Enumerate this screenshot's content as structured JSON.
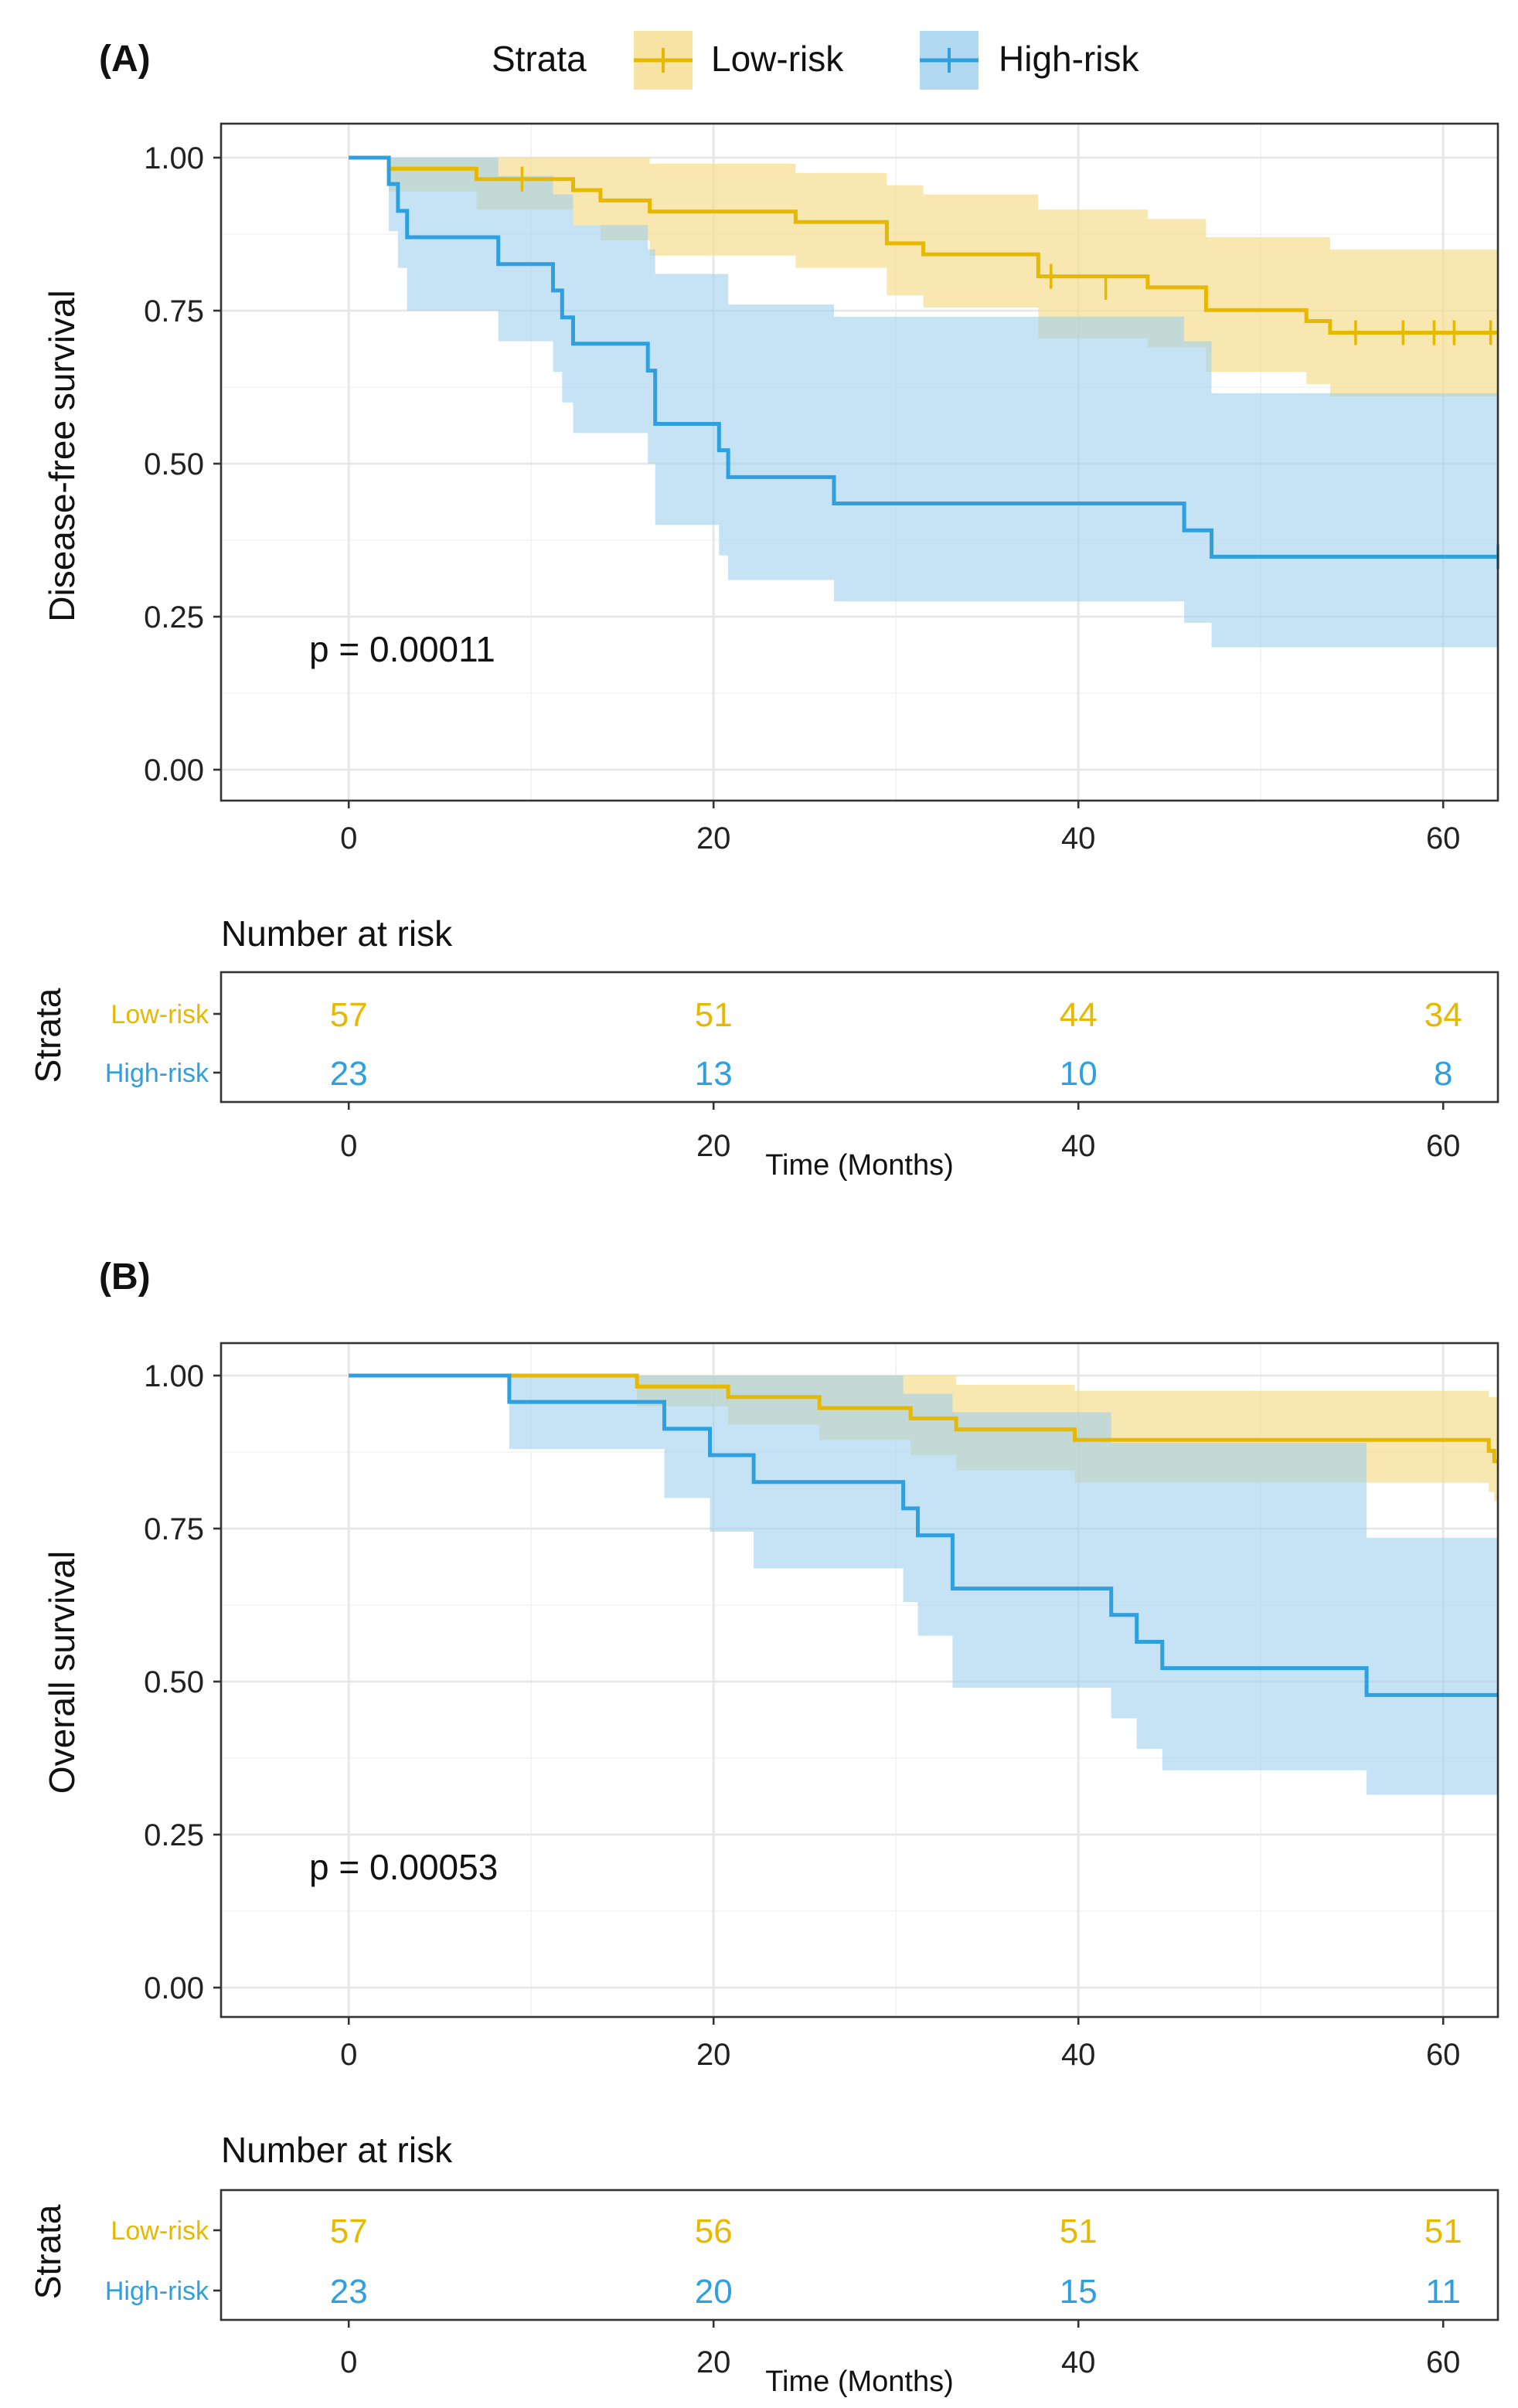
{
  "legend": {
    "title": "Strata",
    "items": [
      {
        "label": "Low-risk",
        "color": "#E7B800"
      },
      {
        "label": "High-risk",
        "color": "#2E9FDF"
      }
    ]
  },
  "colors": {
    "low": "#E7B800",
    "high": "#2E9FDF",
    "low_fill": "#f5dd8e",
    "high_fill": "#9fd0ef"
  },
  "chart_data": [
    {
      "type": "line",
      "panel": "(A)",
      "ylabel": "Disease-free survival",
      "xlabel": "Time (Months)",
      "xlim": [
        -7,
        63
      ],
      "ylim": [
        0,
        1
      ],
      "xticks": [
        0,
        20,
        40,
        60
      ],
      "yticks": [
        "0.00",
        "0.25",
        "0.50",
        "0.75",
        "1.00"
      ],
      "p_value": "p = 0.00011",
      "series": [
        {
          "name": "Low-risk",
          "steps": [
            [
              0,
              1
            ],
            [
              2.2,
              0.982
            ],
            [
              7,
              0.965
            ],
            [
              12.3,
              0.947
            ],
            [
              13.8,
              0.93
            ],
            [
              16.5,
              0.912
            ],
            [
              24.5,
              0.895
            ],
            [
              29.5,
              0.86
            ],
            [
              31.5,
              0.842
            ],
            [
              37.8,
              0.806
            ],
            [
              43.8,
              0.788
            ],
            [
              47,
              0.751
            ],
            [
              52.5,
              0.733
            ],
            [
              53.8,
              0.714
            ],
            [
              63,
              0.714
            ]
          ],
          "lower": [
            [
              0,
              1
            ],
            [
              2.2,
              0.945
            ],
            [
              7,
              0.915
            ],
            [
              12.3,
              0.89
            ],
            [
              13.8,
              0.865
            ],
            [
              16.5,
              0.84
            ],
            [
              24.5,
              0.82
            ],
            [
              29.5,
              0.775
            ],
            [
              31.5,
              0.755
            ],
            [
              37.8,
              0.705
            ],
            [
              43.8,
              0.69
            ],
            [
              47,
              0.65
            ],
            [
              52.5,
              0.63
            ],
            [
              53.8,
              0.61
            ],
            [
              63,
              0.61
            ]
          ],
          "upper": [
            [
              0,
              1
            ],
            [
              2.2,
              1
            ],
            [
              9,
              1
            ],
            [
              12.3,
              1
            ],
            [
              16.5,
              0.99
            ],
            [
              24.5,
              0.975
            ],
            [
              29.5,
              0.955
            ],
            [
              31.5,
              0.94
            ],
            [
              37.8,
              0.915
            ],
            [
              43.8,
              0.9
            ],
            [
              47,
              0.87
            ],
            [
              53.8,
              0.85
            ],
            [
              63,
              0.85
            ]
          ],
          "censors": [
            [
              9.5,
              0.965
            ],
            [
              38.5,
              0.806
            ],
            [
              41.5,
              0.788
            ],
            [
              55.2,
              0.714
            ],
            [
              57.8,
              0.714
            ],
            [
              59.5,
              0.714
            ],
            [
              60.6,
              0.714
            ],
            [
              62.6,
              0.714
            ]
          ]
        },
        {
          "name": "High-risk",
          "steps": [
            [
              0,
              1
            ],
            [
              2.2,
              0.957
            ],
            [
              2.7,
              0.913
            ],
            [
              3.2,
              0.87
            ],
            [
              8.2,
              0.826
            ],
            [
              11.2,
              0.783
            ],
            [
              11.7,
              0.739
            ],
            [
              12.3,
              0.696
            ],
            [
              16.4,
              0.652
            ],
            [
              16.8,
              0.565
            ],
            [
              20.3,
              0.522
            ],
            [
              20.8,
              0.478
            ],
            [
              26.6,
              0.435
            ],
            [
              45.8,
              0.391
            ],
            [
              47.3,
              0.348
            ],
            [
              63,
              0.348
            ]
          ],
          "lower": [
            [
              0,
              1
            ],
            [
              2.2,
              0.88
            ],
            [
              2.7,
              0.82
            ],
            [
              3.2,
              0.75
            ],
            [
              8.2,
              0.7
            ],
            [
              11.2,
              0.65
            ],
            [
              11.7,
              0.6
            ],
            [
              12.3,
              0.55
            ],
            [
              16.4,
              0.5
            ],
            [
              16.8,
              0.4
            ],
            [
              20.3,
              0.35
            ],
            [
              20.8,
              0.31
            ],
            [
              26.6,
              0.275
            ],
            [
              45.8,
              0.24
            ],
            [
              47.3,
              0.2
            ],
            [
              63,
              0.2
            ]
          ],
          "upper": [
            [
              0,
              1
            ],
            [
              8.2,
              0.97
            ],
            [
              11.2,
              0.94
            ],
            [
              12.3,
              0.89
            ],
            [
              16.4,
              0.85
            ],
            [
              16.8,
              0.81
            ],
            [
              20.8,
              0.76
            ],
            [
              26.6,
              0.74
            ],
            [
              45.8,
              0.7
            ],
            [
              47.3,
              0.615
            ],
            [
              63,
              0.615
            ]
          ],
          "censors": [
            [
              63,
              0.348
            ]
          ]
        }
      ],
      "risk_table": {
        "title": "Number at risk",
        "ylabel": "Strata",
        "xlabel": "Time (Months)",
        "times": [
          "0",
          "20",
          "40",
          "60"
        ],
        "rows": [
          {
            "label": "Low-risk",
            "values": [
              "57",
              "51",
              "44",
              "34"
            ]
          },
          {
            "label": "High-risk",
            "values": [
              "23",
              "13",
              "10",
              "8"
            ]
          }
        ]
      }
    },
    {
      "type": "line",
      "panel": "(B)",
      "ylabel": "Overall survival",
      "xlabel": "Time (Months)",
      "xlim": [
        -7,
        63
      ],
      "ylim": [
        0,
        1
      ],
      "xticks": [
        0,
        20,
        40,
        60
      ],
      "yticks": [
        "0.00",
        "0.25",
        "0.50",
        "0.75",
        "1.00"
      ],
      "p_value": "p = 0.00053",
      "series": [
        {
          "name": "Low-risk",
          "steps": [
            [
              0,
              1
            ],
            [
              15.8,
              0.982
            ],
            [
              20.8,
              0.965
            ],
            [
              25.8,
              0.947
            ],
            [
              30.8,
              0.93
            ],
            [
              33.3,
              0.912
            ],
            [
              39.8,
              0.895
            ],
            [
              62.5,
              0.877
            ],
            [
              62.8,
              0.86
            ],
            [
              63,
              0.86
            ]
          ],
          "lower": [
            [
              0,
              1
            ],
            [
              15.8,
              0.95
            ],
            [
              20.8,
              0.92
            ],
            [
              25.8,
              0.895
            ],
            [
              30.8,
              0.87
            ],
            [
              33.3,
              0.845
            ],
            [
              39.8,
              0.825
            ],
            [
              62.5,
              0.81
            ],
            [
              62.8,
              0.795
            ],
            [
              63,
              0.795
            ]
          ],
          "upper": [
            [
              0,
              1
            ],
            [
              33.3,
              0.985
            ],
            [
              39.8,
              0.975
            ],
            [
              62.5,
              0.965
            ],
            [
              63,
              0.965
            ]
          ],
          "censors": []
        },
        {
          "name": "High-risk",
          "steps": [
            [
              0,
              1
            ],
            [
              8.8,
              0.957
            ],
            [
              17.3,
              0.913
            ],
            [
              19.8,
              0.87
            ],
            [
              22.2,
              0.826
            ],
            [
              30.4,
              0.783
            ],
            [
              31.2,
              0.739
            ],
            [
              33.1,
              0.652
            ],
            [
              41.8,
              0.609
            ],
            [
              43.2,
              0.565
            ],
            [
              44.6,
              0.522
            ],
            [
              55.8,
              0.478
            ],
            [
              63,
              0.478
            ]
          ],
          "lower": [
            [
              0,
              1
            ],
            [
              8.8,
              0.88
            ],
            [
              17.3,
              0.8
            ],
            [
              19.8,
              0.745
            ],
            [
              22.2,
              0.685
            ],
            [
              30.4,
              0.63
            ],
            [
              31.2,
              0.575
            ],
            [
              33.1,
              0.49
            ],
            [
              41.8,
              0.44
            ],
            [
              43.2,
              0.39
            ],
            [
              44.6,
              0.355
            ],
            [
              55.8,
              0.315
            ],
            [
              63,
              0.315
            ]
          ],
          "upper": [
            [
              0,
              1
            ],
            [
              30.4,
              0.97
            ],
            [
              33.1,
              0.94
            ],
            [
              41.8,
              0.89
            ],
            [
              55.8,
              0.735
            ],
            [
              63,
              0.735
            ]
          ],
          "censors": []
        }
      ],
      "risk_table": {
        "title": "Number at risk",
        "ylabel": "Strata",
        "xlabel": "Time (Months)",
        "times": [
          "0",
          "20",
          "40",
          "60"
        ],
        "rows": [
          {
            "label": "Low-risk",
            "values": [
              "57",
              "56",
              "51",
              "51"
            ]
          },
          {
            "label": "High-risk",
            "values": [
              "23",
              "20",
              "15",
              "11"
            ]
          }
        ]
      }
    }
  ]
}
